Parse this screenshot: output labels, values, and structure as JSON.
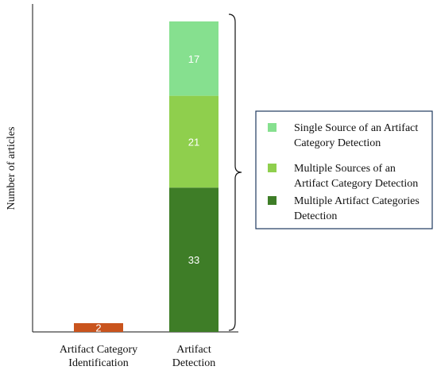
{
  "chart_data": {
    "type": "bar",
    "stacked": true,
    "title": "",
    "xlabel": "",
    "ylabel": "Number of articles",
    "ylim": [
      0,
      71
    ],
    "grid": false,
    "legend_position": "right",
    "categories": [
      "Artifact Category\nIdentification",
      "Artifact\nDetection"
    ],
    "series": [
      {
        "name": "",
        "color": "#c9541d",
        "values": [
          2,
          0
        ]
      },
      {
        "name": "Multiple Artifact Categories Detection",
        "color": "#3e7d27",
        "values": [
          0,
          33
        ]
      },
      {
        "name": "Multiple Sources of an Artifact Category Detection",
        "color": "#8fcf4d",
        "values": [
          0,
          21
        ]
      },
      {
        "name": "Single Source of an Artifact Category Detection",
        "color": "#86e08f",
        "values": [
          0,
          17
        ]
      }
    ],
    "legend": [
      {
        "label": "Single Source of an Artifact\nCategory Detection",
        "color": "#86e08f"
      },
      {
        "label": "Multiple Sources of an\nArtifact Category Detection",
        "color": "#8fcf4d"
      },
      {
        "label": "Multiple Artifact Categories\nDetection",
        "color": "#3e7d27"
      }
    ],
    "annotation": "brace grouping the Artifact Detection bar to the legend"
  }
}
